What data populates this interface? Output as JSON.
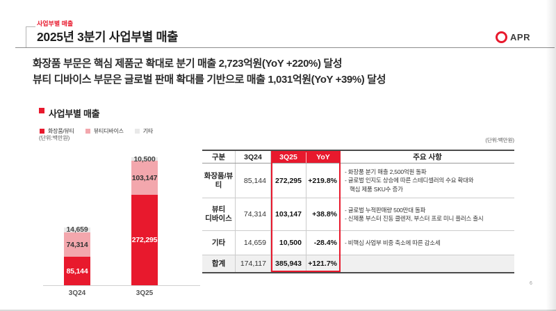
{
  "colors": {
    "brand_red": "#e8192d",
    "pink": "#f3a7ad",
    "light_gray": "#e9e9e9",
    "total_row_bg": "#f0f0f0"
  },
  "header": {
    "eyebrow": "사업부별 매출",
    "title": "2025년 3분기 사업부별 매출",
    "logo_text": "APR"
  },
  "highlights": [
    "화장품 부문은 핵심 제품군 확대로 분기 매출 2,723억원(YoY +220%) 달성",
    "뷰티 디바이스 부문은 글로벌 판매 확대를 기반으로 매출 1,031억원(YoY +39%) 달성"
  ],
  "chart": {
    "title": "사업부별 매출",
    "unit_label": "(단위:백만원)"
  },
  "chart_data": {
    "type": "bar",
    "stacked": true,
    "categories": [
      "3Q24",
      "3Q25"
    ],
    "series": [
      {
        "name": "화장품/뷰티",
        "color": "#e8192d",
        "label_color": "#ffffff",
        "values": [
          85144,
          272295
        ]
      },
      {
        "name": "뷰티디바이스",
        "color": "#f3a7ad",
        "label_color": "#333333",
        "values": [
          74314,
          103147
        ]
      },
      {
        "name": "기타",
        "color": "#e9e9e9",
        "label_color": "#444444",
        "values": [
          14659,
          10500
        ]
      }
    ],
    "totals": [
      174117,
      385943
    ],
    "unit": "백만원",
    "ylim": [
      0,
      420000
    ],
    "grid": false,
    "legend_position": "top-left"
  },
  "table": {
    "unit_label": "(단위:백만원)",
    "columns": [
      "구분",
      "3Q24",
      "3Q25",
      "YoY",
      "주요 사항"
    ],
    "rows": [
      {
        "label": "화장품/뷰티",
        "q3_24": "85,144",
        "q3_25": "272,295",
        "yoy": "+219.8%",
        "notes": [
          "- 화장품 분기 매출 2,500억원 돌파",
          "- 글로벌 인지도 상승에 따른 스테디셀러의 수요 확대와",
          "핵심 제품 SKU수 증가"
        ]
      },
      {
        "label": "뷰티\n디바이스",
        "q3_24": "74,314",
        "q3_25": "103,147",
        "yoy": "+38.8%",
        "notes": [
          "- 글로벌 누적판매량 500만대 돌파",
          "- 신제품 부스터 진동 클렌저, 부스터 프로 미니 플러스 출시"
        ]
      },
      {
        "label": "기타",
        "q3_24": "14,659",
        "q3_25": "10,500",
        "yoy": "-28.4%",
        "notes": [
          "- 비핵심 사업부 비중 축소에 따른 감소세"
        ]
      }
    ],
    "total_row": {
      "label": "합계",
      "q3_24": "174,117",
      "q3_25": "385,943",
      "yoy": "+121.7%"
    }
  },
  "page": {
    "number": "6"
  }
}
